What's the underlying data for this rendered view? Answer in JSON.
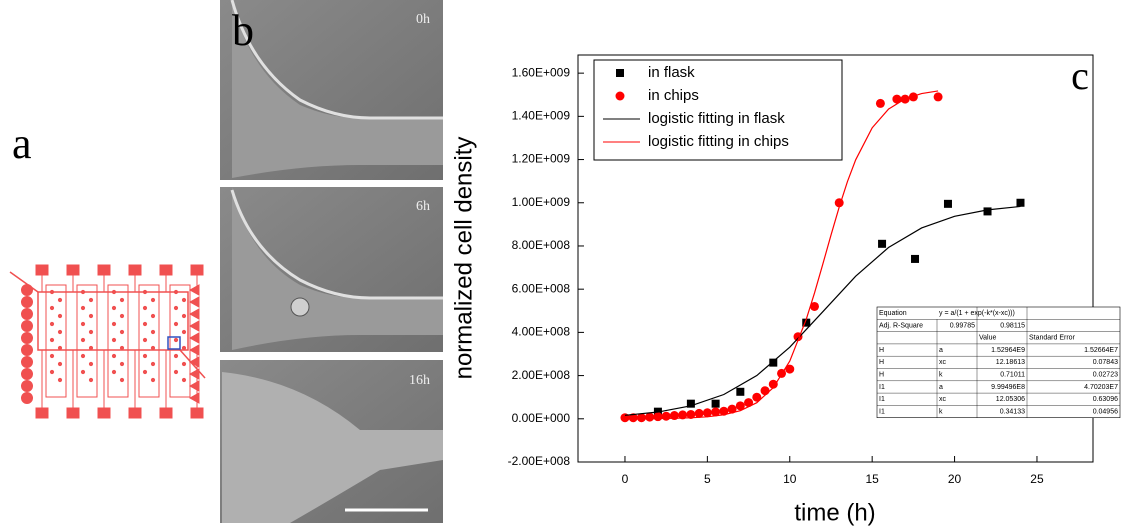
{
  "panels": {
    "a": {
      "label": "a"
    },
    "b": {
      "label": "b",
      "times": [
        "0h",
        "6h",
        "16h"
      ]
    }
  },
  "chart_data": {
    "type": "scatter",
    "panel_label": "c",
    "x_label": "time (h)",
    "y_label": "normalized cell density",
    "xlim": [
      -2.85,
      28.4
    ],
    "ylim": [
      -200000000,
      1684000000
    ],
    "xticks": [
      0,
      5,
      10,
      15,
      20,
      25
    ],
    "yticks": [
      {
        "value": -200000000,
        "label": "-2.00E+008"
      },
      {
        "value": 0,
        "label": "0.00E+000"
      },
      {
        "value": 200000000,
        "label": "2.00E+008"
      },
      {
        "value": 400000000,
        "label": "4.00E+008"
      },
      {
        "value": 600000000,
        "label": "6.00E+008"
      },
      {
        "value": 800000000,
        "label": "8.00E+008"
      },
      {
        "value": 1000000000,
        "label": "1.00E+009"
      },
      {
        "value": 1200000000,
        "label": "1.20E+009"
      },
      {
        "value": 1400000000,
        "label": "1.40E+009"
      },
      {
        "value": 1600000000,
        "label": "1.60E+009"
      }
    ],
    "legend": "upper left",
    "series": [
      {
        "name": "in flask",
        "color": "#000000",
        "marker": "square",
        "x": [
          2,
          4,
          5.5,
          7,
          9,
          11,
          15.6,
          17.6,
          19.6,
          22,
          24
        ],
        "values": [
          33000000,
          70000000,
          70000000,
          125000000,
          260000000,
          445000000,
          810000000,
          740000000,
          995000000,
          960000000,
          1000000000
        ]
      },
      {
        "name": "in chips",
        "color": "#ff0000",
        "marker": "circle",
        "x": [
          0,
          0.5,
          1,
          1.5,
          2,
          2.5,
          3,
          3.5,
          4,
          4.5,
          5,
          5.5,
          6,
          6.5,
          7,
          7.5,
          8,
          8.5,
          9,
          9.5,
          10,
          10.5,
          11.5,
          13,
          15.5,
          16.5,
          17,
          17.5,
          19
        ],
        "values": [
          5000000,
          5000000,
          5000000,
          8000000,
          10000000,
          12000000,
          15000000,
          18000000,
          20000000,
          25000000,
          28000000,
          32000000,
          35000000,
          45000000,
          60000000,
          75000000,
          100000000,
          130000000,
          160000000,
          210000000,
          230000000,
          380000000,
          520000000,
          1000000000,
          1460000000,
          1480000000,
          1480000000,
          1490000000,
          1490000000
        ]
      },
      {
        "name": "logistic fitting in flask",
        "color": "#000000",
        "marker": "line",
        "x": [
          0,
          2,
          4,
          6,
          8,
          10,
          12,
          14,
          16,
          18,
          20,
          22,
          24
        ],
        "values": [
          16070000,
          31300000,
          60100000,
          112400000,
          200300000,
          331500000,
          495300000,
          660200000,
          793300000,
          883500000,
          937400000,
          967100000,
          982900000
        ]
      },
      {
        "name": "logistic fitting in chips",
        "color": "#ff0000",
        "marker": "line",
        "x": [
          0,
          1,
          2,
          3,
          4,
          5,
          6,
          7,
          8,
          9,
          10,
          11,
          11.5,
          12,
          12.5,
          13,
          13.5,
          14,
          15,
          16,
          17,
          18,
          19
        ],
        "values": [
          270000,
          540000,
          1100000,
          2240000,
          4550000,
          9200000,
          18700000,
          37500000,
          74400000,
          144200000,
          267200000,
          460600000,
          582100000,
          714400000,
          849800000,
          979900000,
          1098000000,
          1198900000,
          1347000000,
          1434000000,
          1481100000,
          1505400000,
          1517600000
        ]
      }
    ],
    "fit_table": {
      "equation_row": [
        "Equation",
        "y = a/(1 + exp(-k*(x-xc)))"
      ],
      "r_square_row": [
        "Adj. R-Square",
        "0.99785",
        "0.98115"
      ],
      "header": [
        "Value",
        "Standard Error"
      ],
      "rows": [
        [
          "H",
          "a",
          "1.52964E9",
          "1.52664E7"
        ],
        [
          "H",
          "xc",
          "12.18613",
          "0.07843"
        ],
        [
          "H",
          "k",
          "0.71011",
          "0.02723"
        ],
        [
          "I1",
          "a",
          "9.99496E8",
          "4.70203E7"
        ],
        [
          "I1",
          "xc",
          "12.05306",
          "0.63096"
        ],
        [
          "I1",
          "k",
          "0.34133",
          "0.04956"
        ]
      ]
    }
  }
}
